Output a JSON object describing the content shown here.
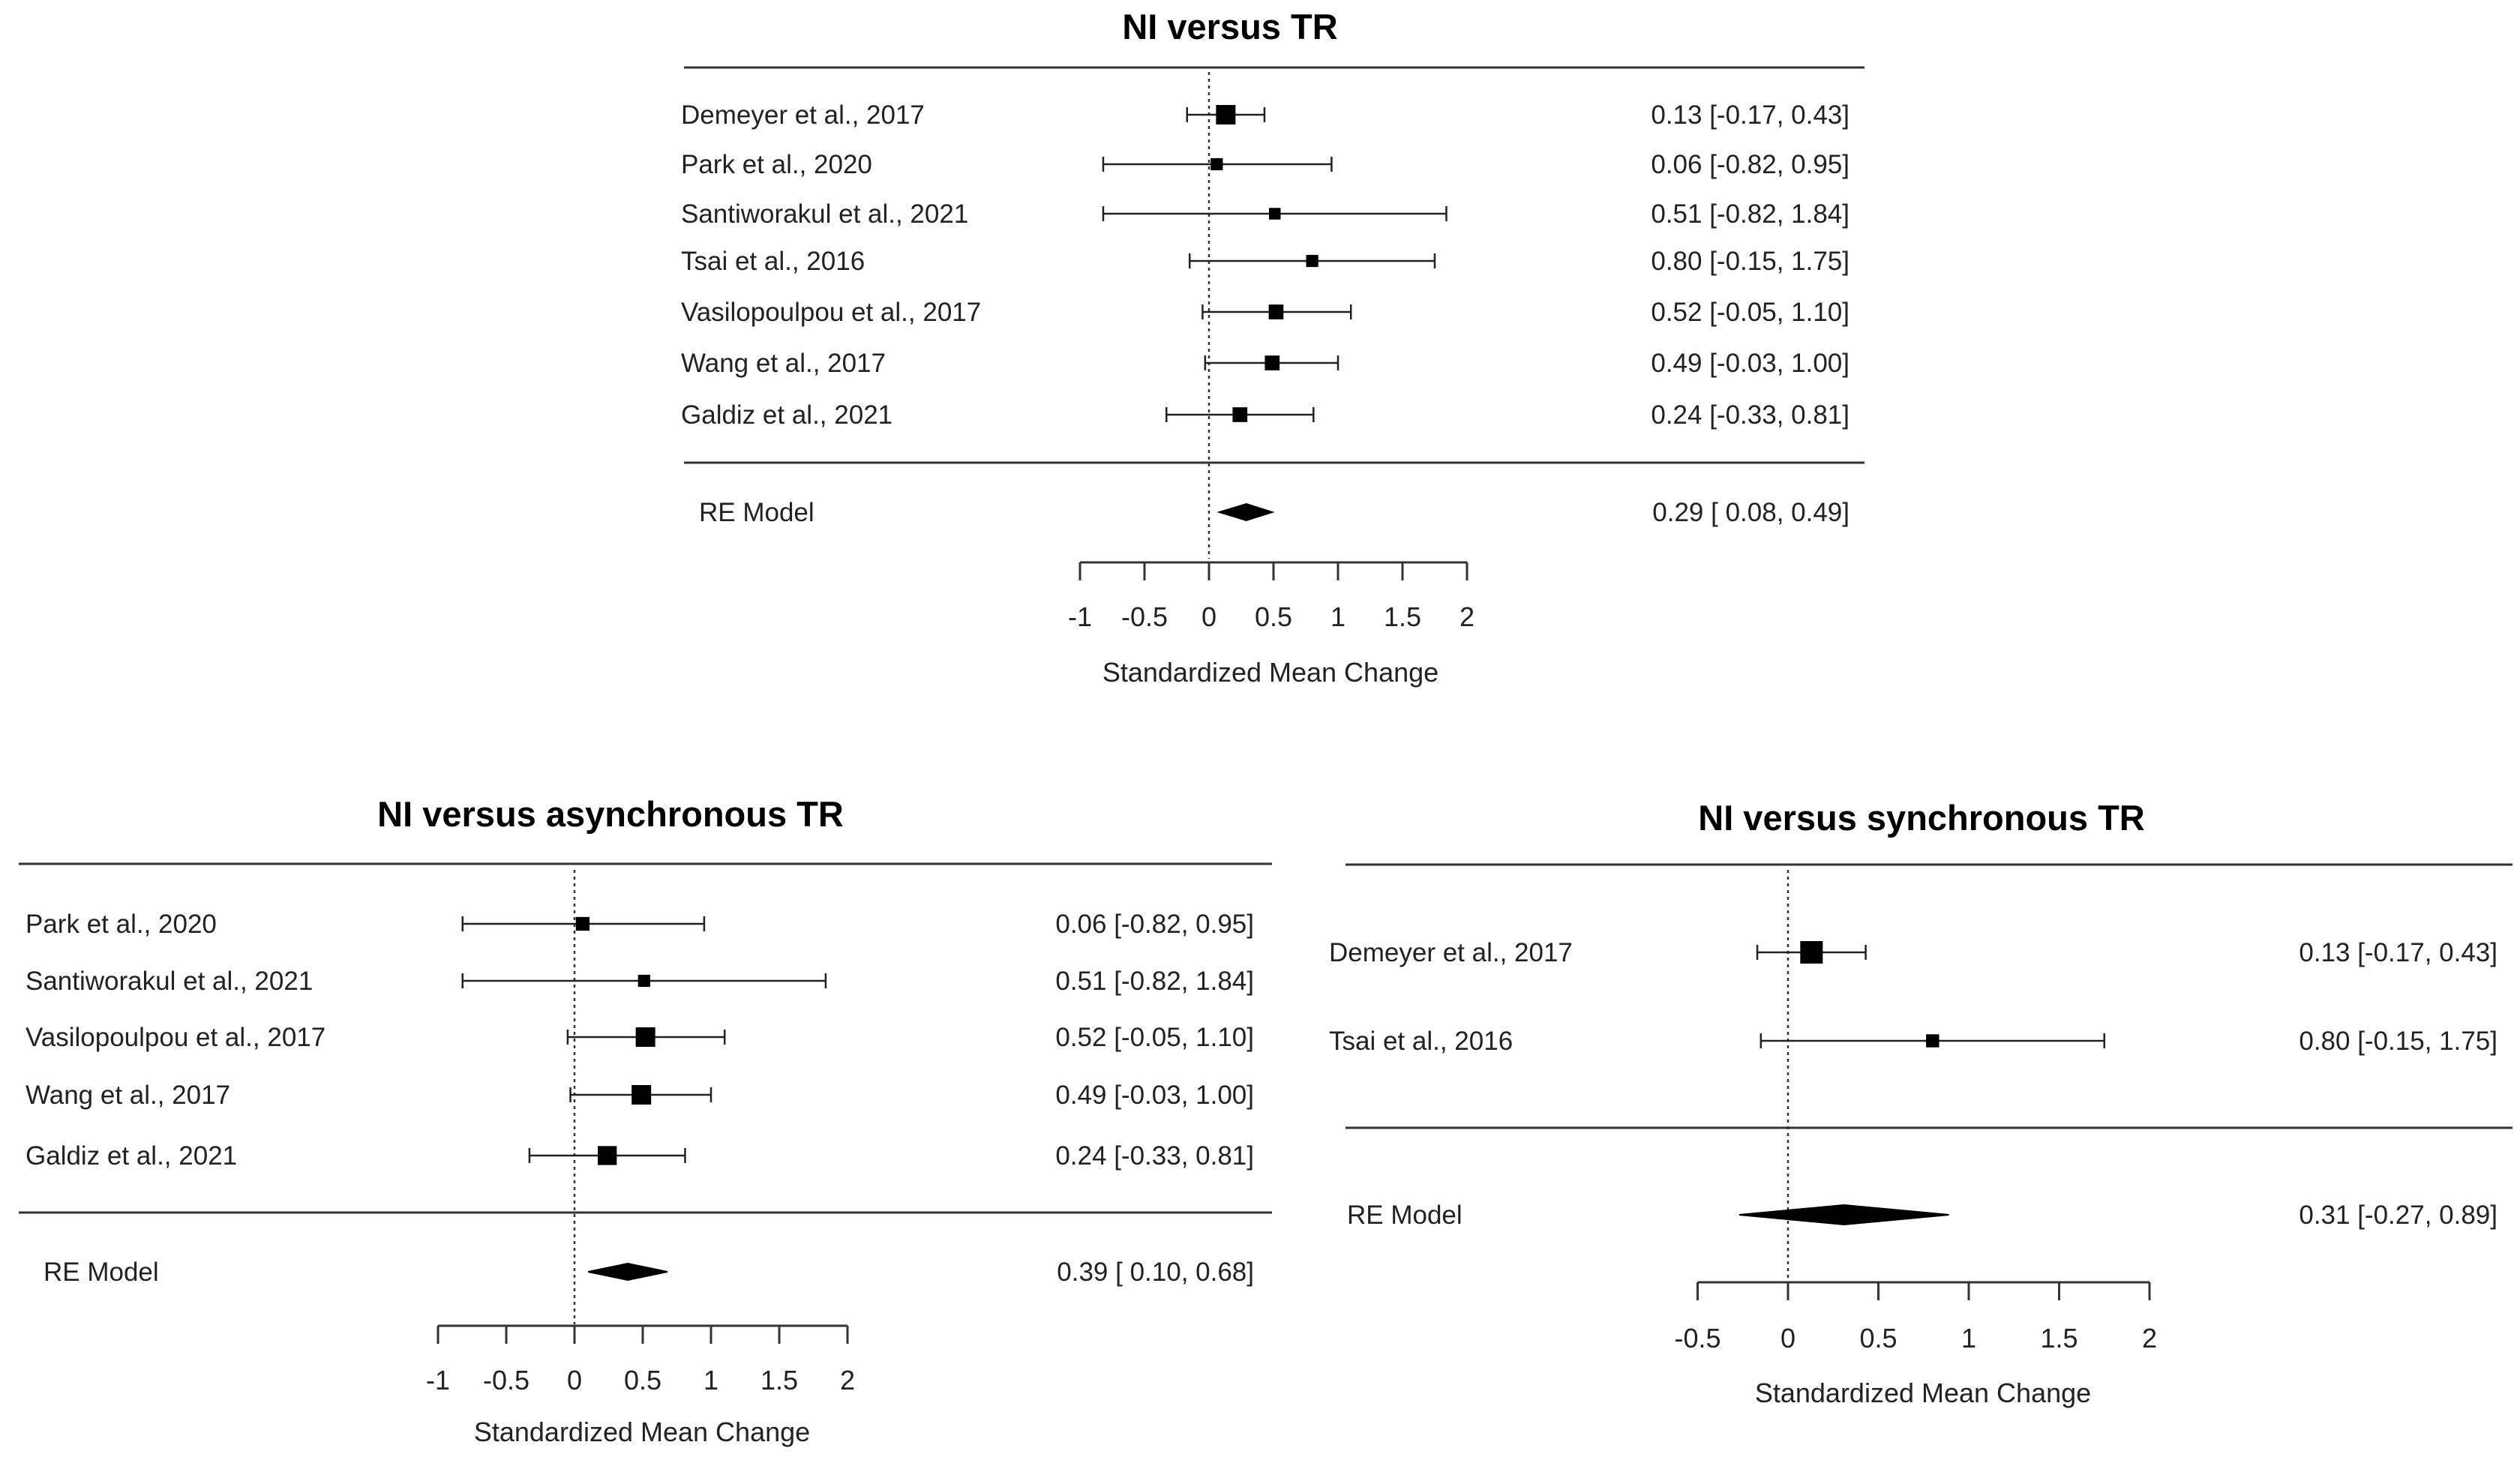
{
  "chart_data": [
    {
      "type": "forest",
      "title": "NI versus TR",
      "xlabel": "Standardized Mean Change",
      "xticks": [
        "-1",
        "-0.5",
        "0",
        "0.5",
        "1",
        "1.5",
        "2"
      ],
      "xlim": [
        -1,
        2
      ],
      "studies": [
        {
          "label": "Demeyer et al., 2017",
          "est": 0.13,
          "lo": -0.17,
          "hi": 0.43,
          "ci_text": "0.13 [-0.17, 0.43]",
          "weight": 1.0
        },
        {
          "label": "Park et al., 2020",
          "est": 0.06,
          "lo": -0.82,
          "hi": 0.95,
          "ci_text": "0.06 [-0.82, 0.95]",
          "weight": 0.3
        },
        {
          "label": "Santiworakul et al., 2021",
          "est": 0.51,
          "lo": -0.82,
          "hi": 1.84,
          "ci_text": "0.51 [-0.82, 1.84]",
          "weight": 0.25
        },
        {
          "label": "Tsai et al., 2016",
          "est": 0.8,
          "lo": -0.15,
          "hi": 1.75,
          "ci_text": "0.80 [-0.15, 1.75]",
          "weight": 0.3
        },
        {
          "label": "Vasilopoulpou et al., 2017",
          "est": 0.52,
          "lo": -0.05,
          "hi": 1.1,
          "ci_text": "0.52 [-0.05, 1.10]",
          "weight": 0.55
        },
        {
          "label": "Wang et al., 2017",
          "est": 0.49,
          "lo": -0.03,
          "hi": 1.0,
          "ci_text": "0.49 [-0.03, 1.00]",
          "weight": 0.55
        },
        {
          "label": "Galdiz et al., 2021",
          "est": 0.24,
          "lo": -0.33,
          "hi": 0.81,
          "ci_text": "0.24 [-0.33, 0.81]",
          "weight": 0.55
        }
      ],
      "summary": {
        "label": "RE Model",
        "est": 0.29,
        "lo": 0.08,
        "hi": 0.49,
        "ci_text": "0.29 [ 0.08, 0.49]"
      }
    },
    {
      "type": "forest",
      "title": "NI versus asynchronous TR",
      "xlabel": "Standardized Mean Change",
      "xticks": [
        "-1",
        "-0.5",
        "0",
        "0.5",
        "1",
        "1.5",
        "2"
      ],
      "xlim": [
        -1,
        2
      ],
      "studies": [
        {
          "label": "Park et al., 2020",
          "est": 0.06,
          "lo": -0.82,
          "hi": 0.95,
          "ci_text": "0.06 [-0.82, 0.95]",
          "weight": 0.45
        },
        {
          "label": "Santiworakul et al., 2021",
          "est": 0.51,
          "lo": -0.82,
          "hi": 1.84,
          "ci_text": "0.51 [-0.82, 1.84]",
          "weight": 0.3
        },
        {
          "label": "Vasilopoulpou et al., 2017",
          "est": 0.52,
          "lo": -0.05,
          "hi": 1.1,
          "ci_text": "0.52 [-0.05, 1.10]",
          "weight": 1.0
        },
        {
          "label": "Wang et al., 2017",
          "est": 0.49,
          "lo": -0.03,
          "hi": 1.0,
          "ci_text": "0.49 [-0.03, 1.00]",
          "weight": 1.0
        },
        {
          "label": "Galdiz et al., 2021",
          "est": 0.24,
          "lo": -0.33,
          "hi": 0.81,
          "ci_text": "0.24 [-0.33, 0.81]",
          "weight": 0.95
        }
      ],
      "summary": {
        "label": "RE Model",
        "est": 0.39,
        "lo": 0.1,
        "hi": 0.68,
        "ci_text": "0.39 [ 0.10, 0.68]"
      }
    },
    {
      "type": "forest",
      "title": "NI versus synchronous TR",
      "xlabel": "Standardized Mean Change",
      "xticks": [
        "-0.5",
        "0",
        "0.5",
        "1",
        "1.5",
        "2"
      ],
      "xlim": [
        -0.5,
        2
      ],
      "studies": [
        {
          "label": "Demeyer et al., 2017",
          "est": 0.13,
          "lo": -0.17,
          "hi": 0.43,
          "ci_text": "0.13 [-0.17, 0.43]",
          "weight": 1.0
        },
        {
          "label": "Tsai et al., 2016",
          "est": 0.8,
          "lo": -0.15,
          "hi": 1.75,
          "ci_text": "0.80 [-0.15, 1.75]",
          "weight": 0.3
        }
      ],
      "summary": {
        "label": "RE Model",
        "est": 0.31,
        "lo": -0.27,
        "hi": 0.89,
        "ci_text": "0.31 [-0.27, 0.89]"
      }
    }
  ]
}
